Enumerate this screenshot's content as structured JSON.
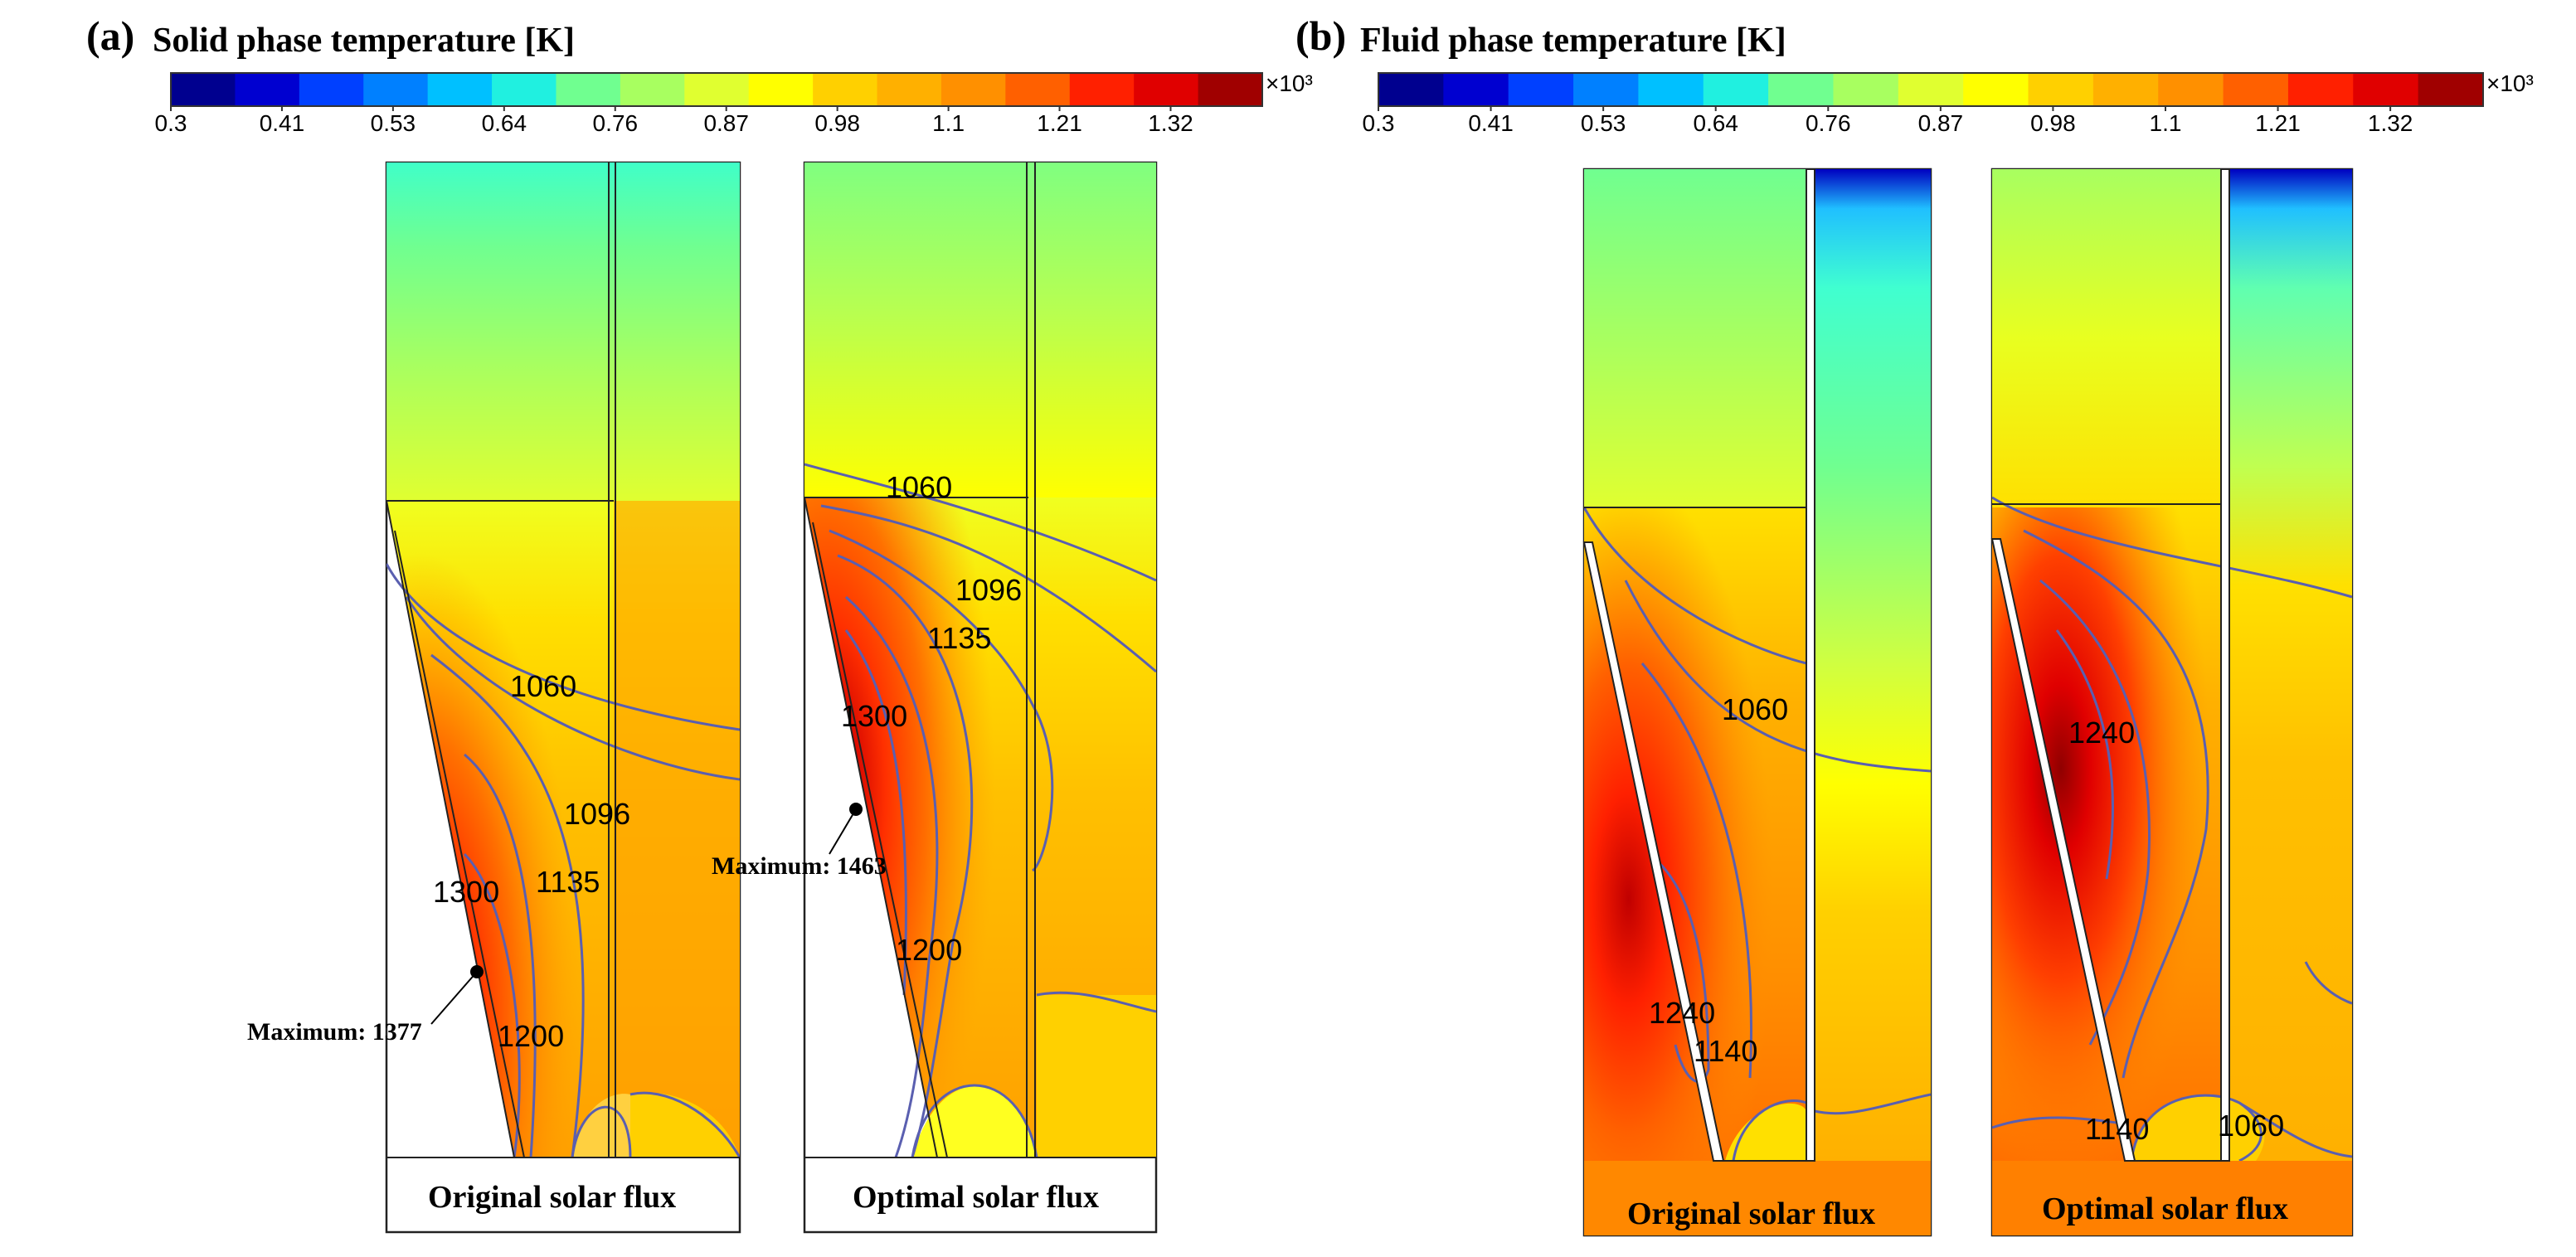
{
  "colors": {
    "colormap": [
      "#00008f",
      "#0000d0",
      "#0040ff",
      "#0080ff",
      "#00c0ff",
      "#20f0e0",
      "#70ff90",
      "#a8ff60",
      "#e0ff30",
      "#ffff00",
      "#ffd000",
      "#ffb000",
      "#ff9000",
      "#ff6000",
      "#ff2000",
      "#e00000",
      "#a00000"
    ],
    "isoline": "#5a5fb0"
  },
  "colorbar": {
    "ticks": [
      "0.3",
      "0.41",
      "0.53",
      "0.64",
      "0.76",
      "0.87",
      "0.98",
      "1.1",
      "1.21",
      "1.32"
    ],
    "multiplier": "×10³"
  },
  "panel_a": {
    "tag": "(a)",
    "title": "Solid phase temperature [K]",
    "left": {
      "caption": "Original solar flux",
      "max_label": "Maximum: 1377",
      "contour_labels": [
        "1060",
        "1096",
        "1135",
        "1300",
        "1200"
      ]
    },
    "right": {
      "caption": "Optimal solar flux",
      "max_label": "Maximum: 1463",
      "contour_labels": [
        "1060",
        "1096",
        "1135",
        "1300",
        "1200"
      ]
    }
  },
  "panel_b": {
    "tag": "(b)",
    "title": "Fluid phase temperature [K]",
    "left": {
      "caption": "Original solar flux",
      "contour_labels": [
        "1060",
        "1240",
        "1140"
      ]
    },
    "right": {
      "caption": "Optimal solar flux",
      "contour_labels": [
        "1240",
        "1140",
        "1060"
      ]
    }
  }
}
